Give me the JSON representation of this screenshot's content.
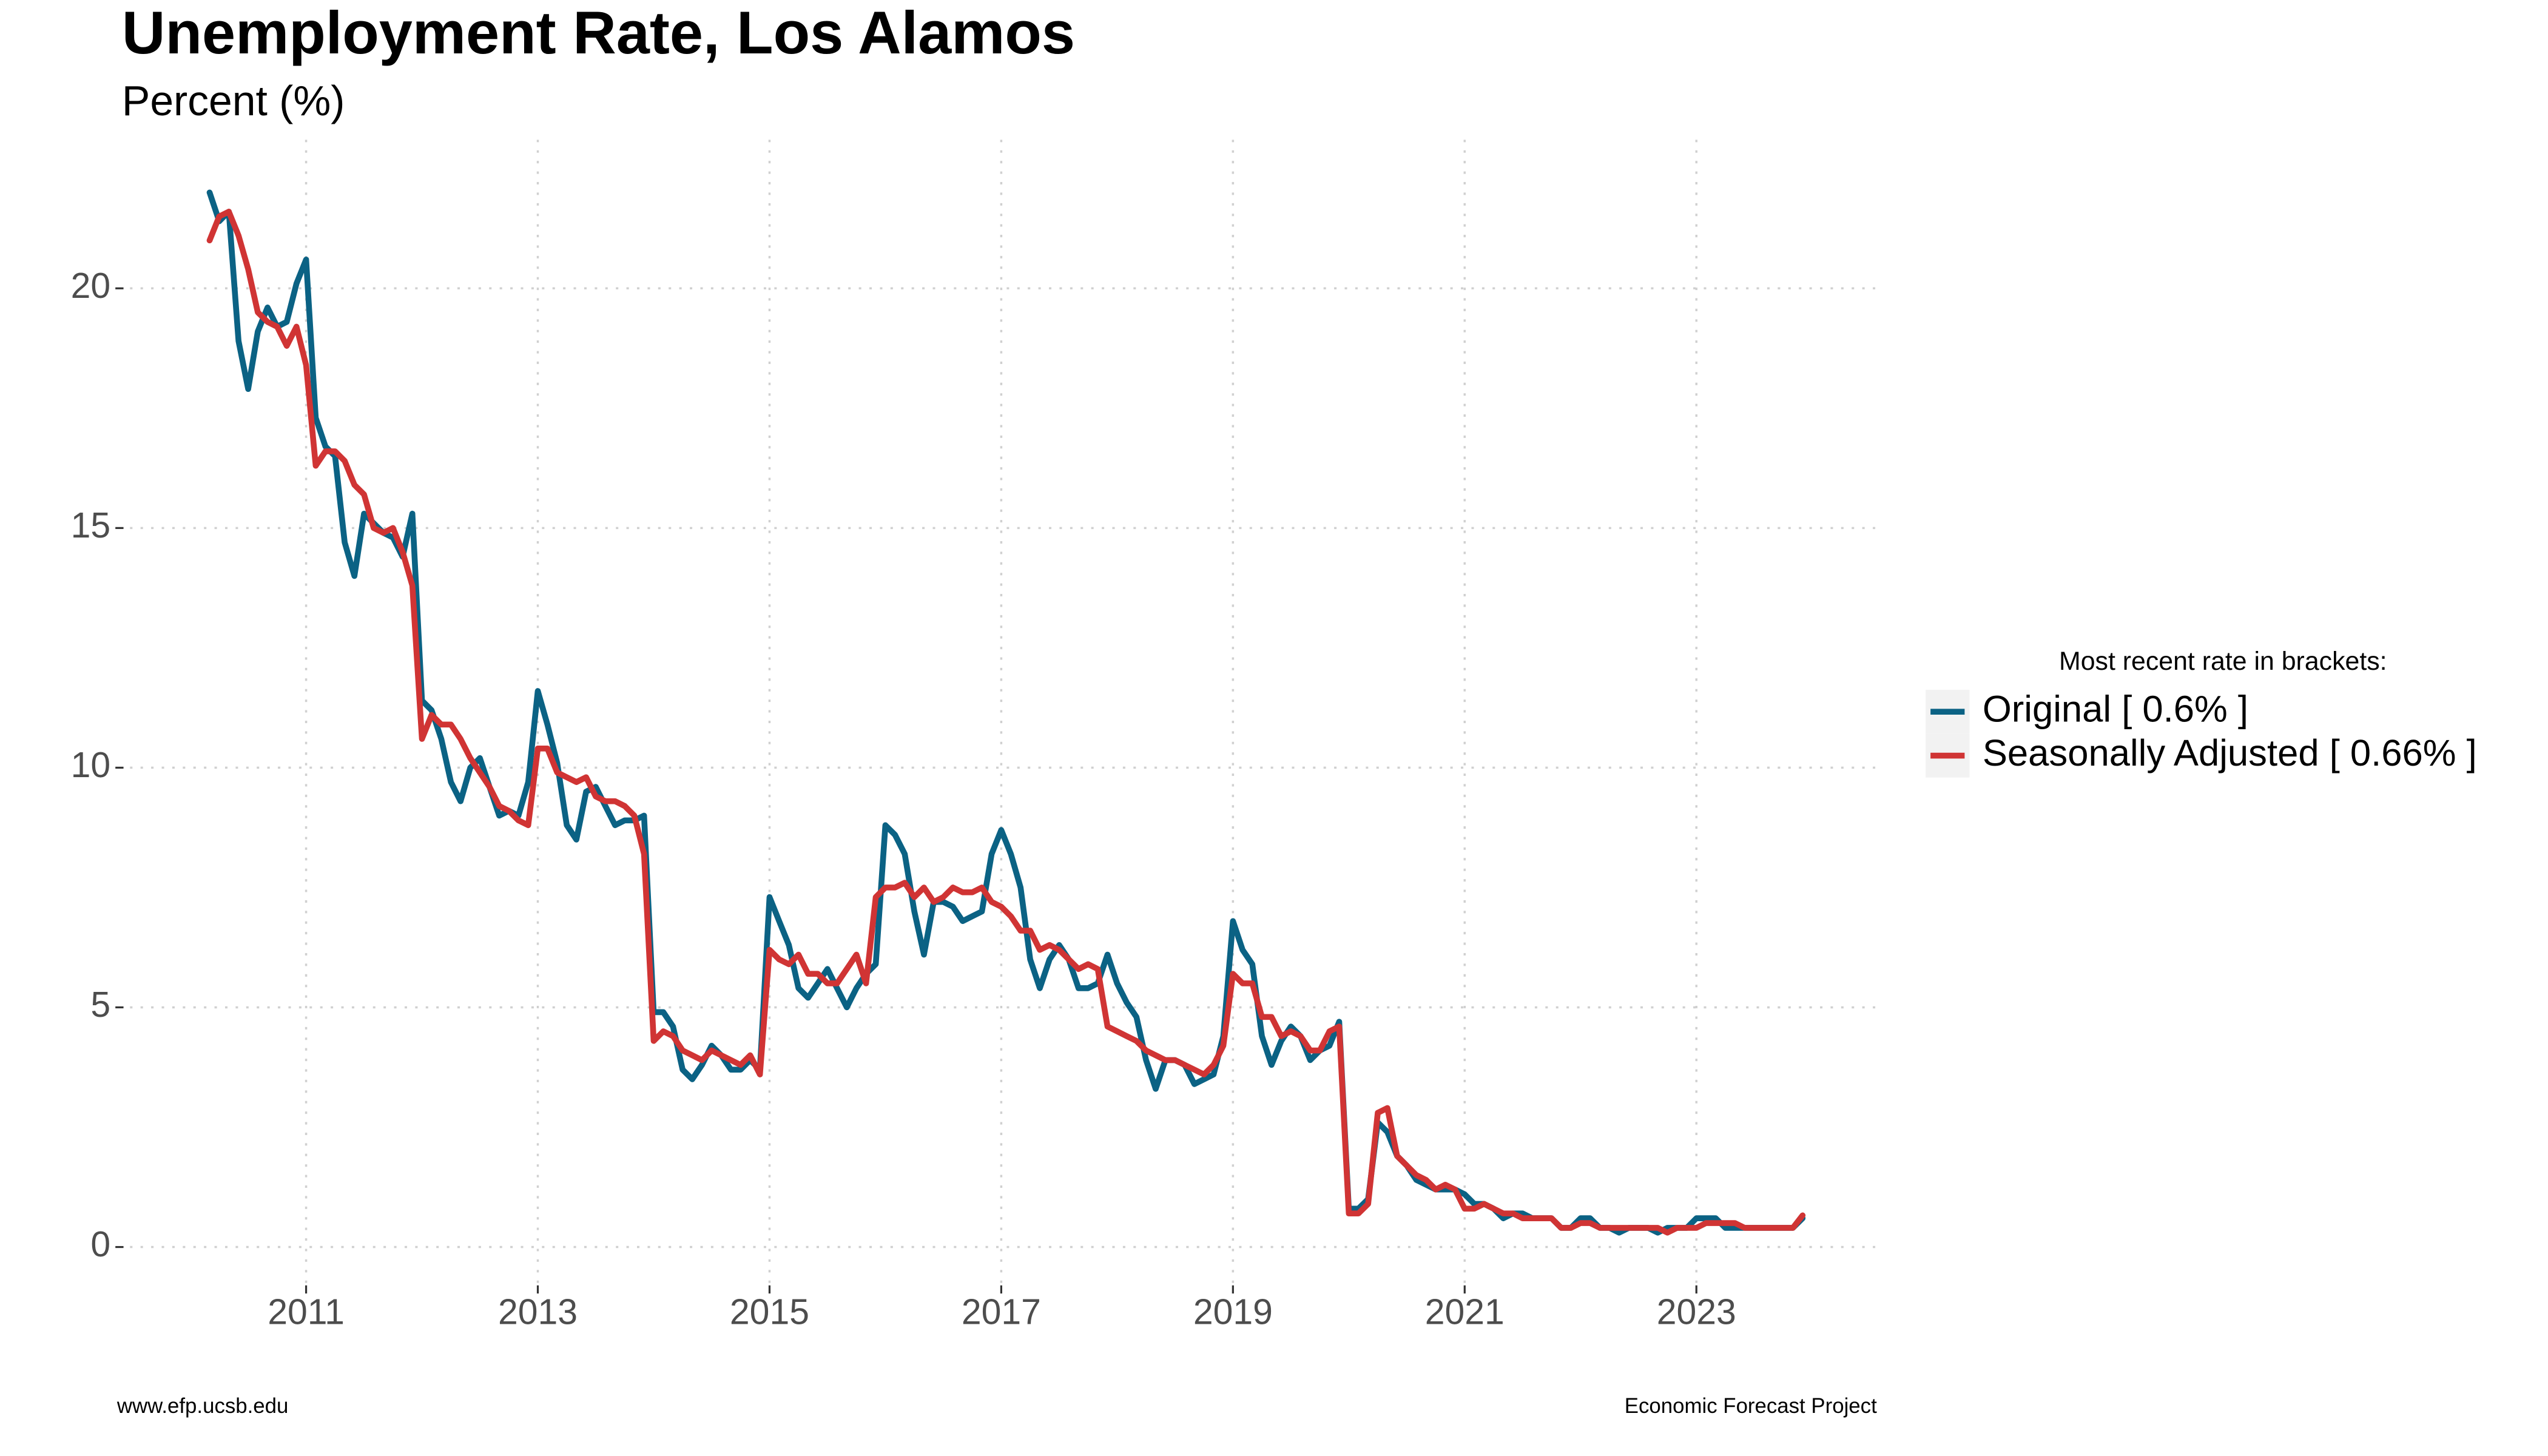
{
  "chart_data": {
    "type": "line",
    "title": "Unemployment Rate, Los Alamos",
    "subtitle": "Percent (%)",
    "legend_title": "Most recent rate in brackets:",
    "legend_position": "right",
    "caption_left": "www.efp.ucsb.edu",
    "caption_right": "Economic Forecast Project",
    "grid": true,
    "xlim": [
      2009.48,
      2024.6
    ],
    "ylim": [
      -0.8,
      23.1
    ],
    "xticks": [
      2011,
      2013,
      2015,
      2017,
      2019,
      2021,
      2023
    ],
    "yticks": [
      0,
      5,
      10,
      15,
      20
    ],
    "x": [
      2010.167,
      2010.25,
      2010.333,
      2010.417,
      2010.5,
      2010.583,
      2010.667,
      2010.75,
      2010.833,
      2010.917,
      2011,
      2011.083,
      2011.167,
      2011.25,
      2011.333,
      2011.417,
      2011.5,
      2011.583,
      2011.667,
      2011.75,
      2011.833,
      2011.917,
      2012,
      2012.083,
      2012.167,
      2012.25,
      2012.333,
      2012.417,
      2012.5,
      2012.583,
      2012.667,
      2012.75,
      2012.833,
      2012.917,
      2013,
      2013.083,
      2013.167,
      2013.25,
      2013.333,
      2013.417,
      2013.5,
      2013.583,
      2013.667,
      2013.75,
      2013.833,
      2013.917,
      2014,
      2014.083,
      2014.167,
      2014.25,
      2014.333,
      2014.417,
      2014.5,
      2014.583,
      2014.667,
      2014.75,
      2014.833,
      2014.917,
      2015,
      2015.083,
      2015.167,
      2015.25,
      2015.333,
      2015.417,
      2015.5,
      2015.583,
      2015.667,
      2015.75,
      2015.833,
      2015.917,
      2016,
      2016.083,
      2016.167,
      2016.25,
      2016.333,
      2016.417,
      2016.5,
      2016.583,
      2016.667,
      2016.75,
      2016.833,
      2016.917,
      2017,
      2017.083,
      2017.167,
      2017.25,
      2017.333,
      2017.417,
      2017.5,
      2017.583,
      2017.667,
      2017.75,
      2017.833,
      2017.917,
      2018,
      2018.083,
      2018.167,
      2018.25,
      2018.333,
      2018.417,
      2018.5,
      2018.583,
      2018.667,
      2018.75,
      2018.833,
      2018.917,
      2019,
      2019.083,
      2019.167,
      2019.25,
      2019.333,
      2019.417,
      2019.5,
      2019.583,
      2019.667,
      2019.75,
      2019.833,
      2019.917,
      2020,
      2020.083,
      2020.167,
      2020.25,
      2020.333,
      2020.417,
      2020.5,
      2020.583,
      2020.667,
      2020.75,
      2020.833,
      2020.917,
      2021,
      2021.083,
      2021.167,
      2021.25,
      2021.333,
      2021.417,
      2021.5,
      2021.583,
      2021.667,
      2021.75,
      2021.833,
      2021.917,
      2022,
      2022.083,
      2022.167,
      2022.25,
      2022.333,
      2022.417,
      2022.5,
      2022.583,
      2022.667,
      2022.75,
      2022.833,
      2022.917,
      2023,
      2023.083,
      2023.167,
      2023.25,
      2023.333,
      2023.417,
      2023.5,
      2023.583,
      2023.667,
      2023.75,
      2023.833,
      2023.917
    ],
    "series": [
      {
        "name": "Original [ 0.6% ]",
        "color": "#0b6284",
        "values": [
          22.0,
          21.4,
          21.6,
          18.9,
          17.9,
          19.1,
          19.6,
          19.2,
          19.3,
          20.1,
          20.6,
          17.3,
          16.7,
          16.5,
          14.7,
          14.0,
          15.3,
          15.1,
          14.9,
          14.8,
          14.4,
          15.3,
          11.4,
          11.2,
          10.6,
          9.7,
          9.3,
          10.0,
          10.2,
          9.6,
          9.0,
          9.1,
          9.0,
          9.7,
          11.6,
          10.9,
          10.1,
          8.8,
          8.5,
          9.5,
          9.6,
          9.2,
          8.8,
          8.9,
          8.9,
          9.0,
          4.9,
          4.9,
          4.6,
          3.7,
          3.5,
          3.8,
          4.2,
          4.0,
          3.7,
          3.7,
          3.9,
          3.7,
          7.3,
          6.8,
          6.3,
          5.4,
          5.2,
          5.5,
          5.8,
          5.4,
          5.0,
          5.4,
          5.7,
          5.9,
          8.8,
          8.6,
          8.2,
          7.0,
          6.1,
          7.2,
          7.2,
          7.1,
          6.8,
          6.9,
          7.0,
          8.2,
          8.7,
          8.2,
          7.5,
          6.0,
          5.4,
          6.0,
          6.3,
          6.0,
          5.4,
          5.4,
          5.5,
          6.1,
          5.5,
          5.1,
          4.8,
          3.9,
          3.3,
          3.9,
          3.9,
          3.8,
          3.4,
          3.5,
          3.6,
          4.4,
          6.8,
          6.2,
          5.9,
          4.4,
          3.8,
          4.3,
          4.6,
          4.4,
          3.9,
          4.1,
          4.2,
          4.7,
          0.8,
          0.8,
          1.0,
          2.6,
          2.4,
          1.9,
          1.7,
          1.4,
          1.3,
          1.2,
          1.2,
          1.2,
          1.1,
          0.9,
          0.9,
          0.8,
          0.6,
          0.7,
          0.7,
          0.6,
          0.6,
          0.6,
          0.4,
          0.4,
          0.6,
          0.6,
          0.4,
          0.4,
          0.3,
          0.4,
          0.4,
          0.4,
          0.3,
          0.4,
          0.4,
          0.4,
          0.6,
          0.6,
          0.6,
          0.4,
          0.4,
          0.4,
          0.4,
          0.4,
          0.4,
          0.4,
          0.4,
          0.6
        ]
      },
      {
        "name": "Seasonally Adjusted [ 0.66% ]",
        "color": "#d03434",
        "values": [
          21.0,
          21.5,
          21.6,
          21.1,
          20.4,
          19.5,
          19.3,
          19.2,
          18.8,
          19.2,
          18.4,
          16.3,
          16.6,
          16.6,
          16.4,
          15.9,
          15.7,
          15.0,
          14.9,
          15.0,
          14.5,
          13.8,
          10.6,
          11.1,
          10.9,
          10.9,
          10.6,
          10.2,
          9.9,
          9.6,
          9.2,
          9.1,
          8.9,
          8.8,
          10.4,
          10.4,
          9.9,
          9.8,
          9.7,
          9.8,
          9.4,
          9.3,
          9.3,
          9.2,
          9.0,
          8.2,
          4.3,
          4.5,
          4.4,
          4.1,
          4.0,
          3.9,
          4.1,
          4.0,
          3.9,
          3.8,
          4.0,
          3.6,
          6.2,
          6.0,
          5.9,
          6.1,
          5.7,
          5.7,
          5.5,
          5.5,
          5.8,
          6.1,
          5.5,
          7.3,
          7.5,
          7.5,
          7.6,
          7.3,
          7.5,
          7.2,
          7.3,
          7.5,
          7.4,
          7.4,
          7.5,
          7.2,
          7.1,
          6.9,
          6.6,
          6.6,
          6.2,
          6.3,
          6.2,
          6.0,
          5.8,
          5.9,
          5.8,
          4.6,
          4.5,
          4.4,
          4.3,
          4.1,
          4.0,
          3.9,
          3.9,
          3.8,
          3.7,
          3.6,
          3.8,
          4.2,
          5.7,
          5.5,
          5.5,
          4.8,
          4.8,
          4.4,
          4.5,
          4.4,
          4.1,
          4.1,
          4.5,
          4.6,
          0.7,
          0.7,
          0.9,
          2.8,
          2.9,
          1.9,
          1.7,
          1.5,
          1.4,
          1.2,
          1.3,
          1.2,
          0.8,
          0.8,
          0.9,
          0.8,
          0.7,
          0.7,
          0.6,
          0.6,
          0.6,
          0.6,
          0.4,
          0.4,
          0.5,
          0.5,
          0.4,
          0.4,
          0.4,
          0.4,
          0.4,
          0.4,
          0.4,
          0.3,
          0.4,
          0.4,
          0.4,
          0.5,
          0.5,
          0.5,
          0.5,
          0.4,
          0.4,
          0.4,
          0.4,
          0.4,
          0.4,
          0.66
        ]
      }
    ]
  }
}
